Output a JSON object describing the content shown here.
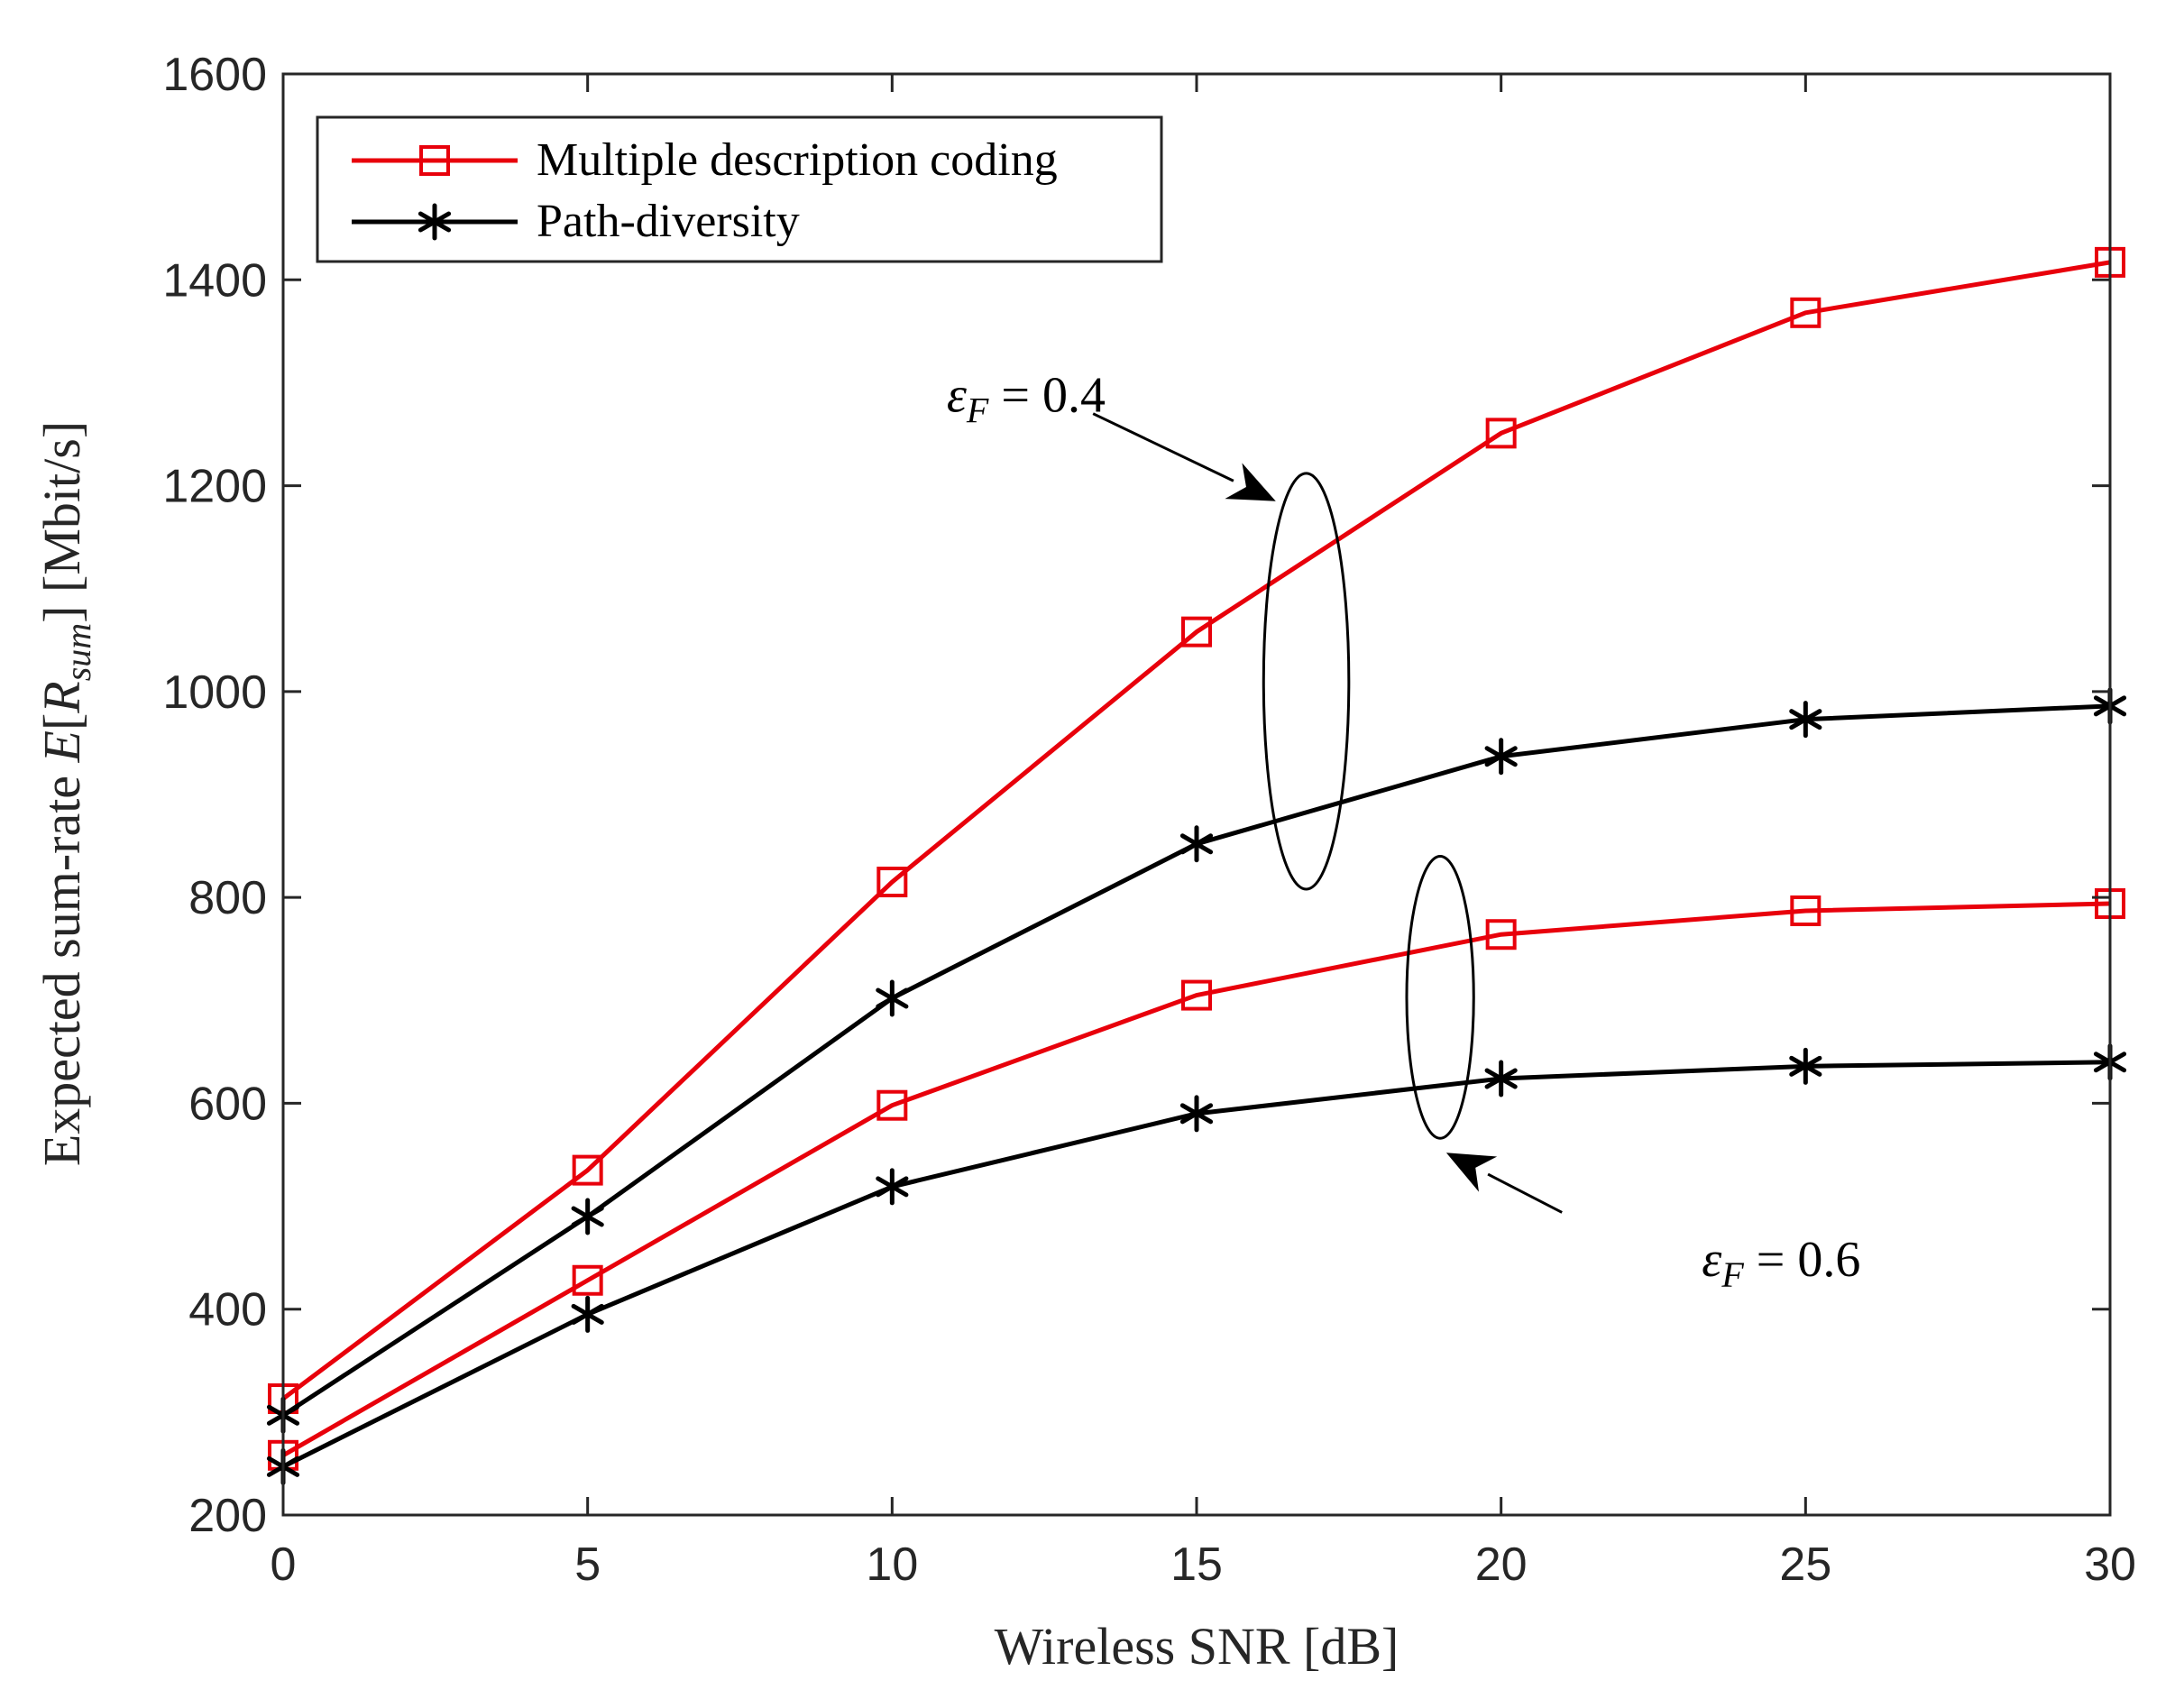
{
  "chart_data": {
    "type": "line",
    "xlabel": "Wireless SNR [dB]",
    "ylabel": "Expected sum-rate E[R_sum] [Mbit/s]",
    "ylabel_parts": {
      "prefix": "Expected sum-rate ",
      "E": "E",
      "open": "[",
      "R": "R",
      "sub": "sum",
      "close": "]",
      "unit": " [Mbit/s]"
    },
    "xlim": [
      0,
      30
    ],
    "ylim": [
      200,
      1600
    ],
    "xticks": [
      0,
      5,
      10,
      15,
      20,
      25,
      30
    ],
    "yticks": [
      200,
      400,
      600,
      800,
      1000,
      1200,
      1400,
      1600
    ],
    "x": [
      0,
      5,
      10,
      15,
      20,
      25,
      30
    ],
    "series": [
      {
        "name": "Multiple description coding",
        "group": "eps_0.4",
        "color": "#e8000b",
        "marker": "square",
        "values": [
          313,
          535,
          815,
          1058,
          1251,
          1368,
          1417
        ]
      },
      {
        "name": "Path-diversity",
        "group": "eps_0.4",
        "color": "#000000",
        "marker": "asterisk",
        "values": [
          297,
          490,
          702,
          852,
          937,
          973,
          986
        ]
      },
      {
        "name": "Multiple description coding",
        "group": "eps_0.6",
        "color": "#e8000b",
        "marker": "square",
        "values": [
          258,
          428,
          598,
          705,
          764,
          787,
          794
        ]
      },
      {
        "name": "Path-diversity",
        "group": "eps_0.6",
        "color": "#000000",
        "marker": "asterisk",
        "values": [
          247,
          395,
          519,
          590,
          624,
          636,
          640
        ]
      }
    ],
    "legend": {
      "position": "top-left",
      "entries": [
        {
          "label": "Multiple description coding",
          "color": "#e8000b",
          "marker": "square"
        },
        {
          "label": "Path-diversity",
          "color": "#000000",
          "marker": "asterisk"
        }
      ]
    },
    "annotations": [
      {
        "id": "eps04",
        "symbol": "ε",
        "sub": "F",
        "eq": " = 0.4",
        "text_at": [
          12.2,
          1272
        ],
        "arrow_from": [
          13.3,
          1270
        ],
        "arrow_to": [
          16.3,
          1185
        ],
        "ellipse": {
          "cx": 16.8,
          "cy": 1010,
          "rx": 0.7,
          "ry": 202
        }
      },
      {
        "id": "eps06",
        "symbol": "ε",
        "sub": "F",
        "eq": " = 0.6",
        "text_at": [
          24.6,
          432
        ],
        "arrow_from": [
          21.0,
          494
        ],
        "arrow_to": [
          19.1,
          552
        ],
        "ellipse": {
          "cx": 19.0,
          "cy": 703,
          "rx": 0.55,
          "ry": 137
        }
      }
    ]
  }
}
